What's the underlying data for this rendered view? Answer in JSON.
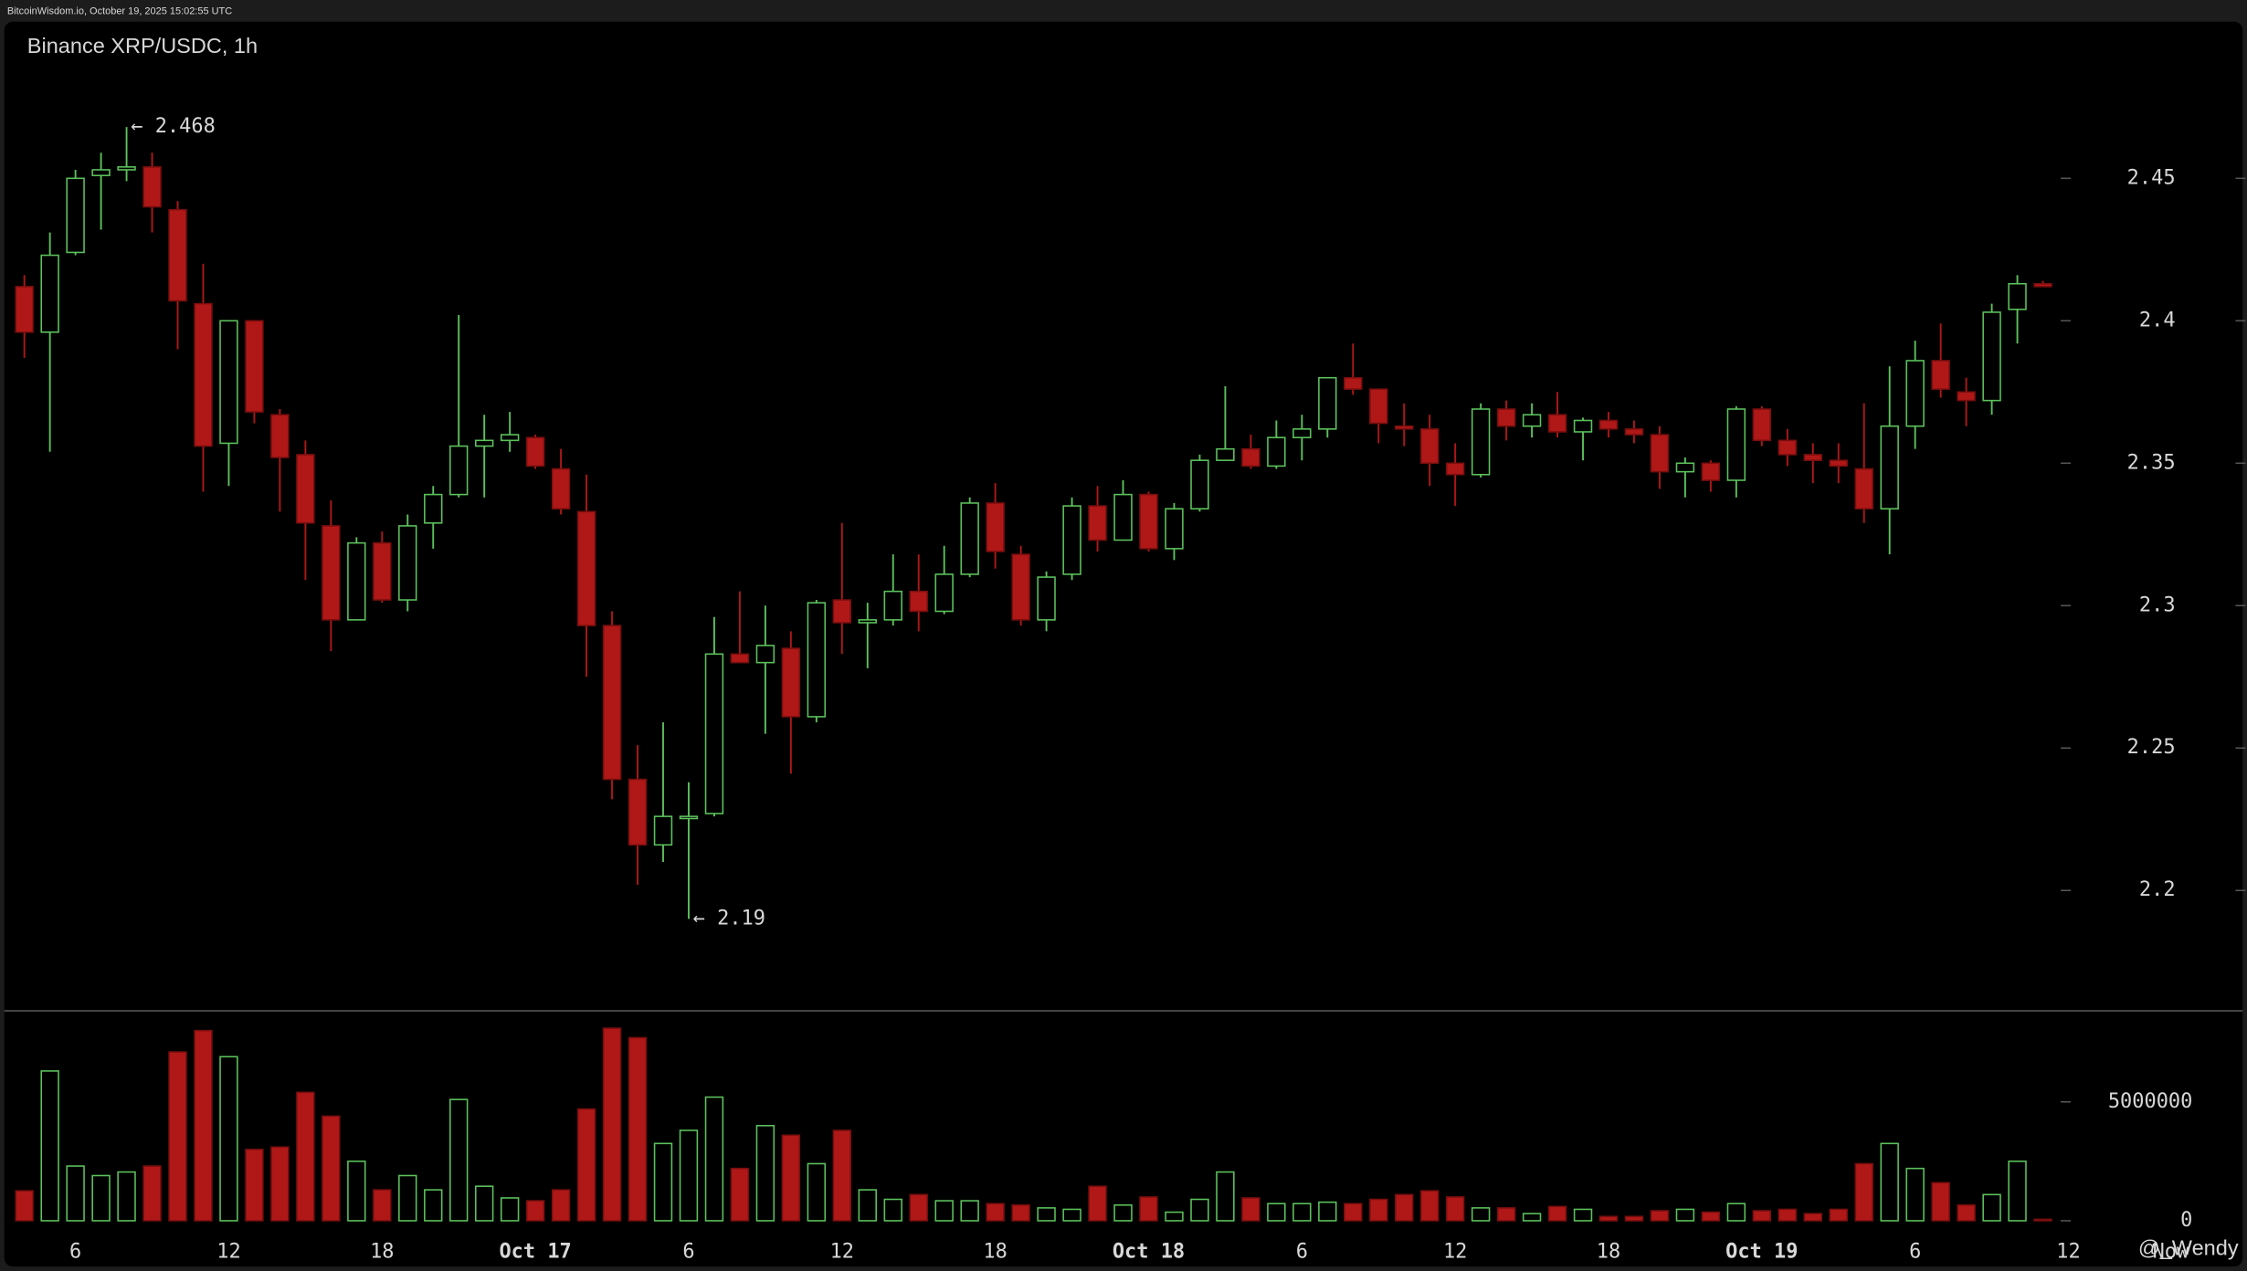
{
  "header": "BitcoinWisdom.io, October 19, 2025 15:02:55 UTC",
  "watermark": "@_Wendy",
  "chart_data": [
    {
      "type": "candlestick",
      "title": "Binance XRP/USDC, 1h",
      "up_color": "#5cc25c",
      "down_color": "#b01818",
      "open": [
        2.412,
        2.396,
        2.424,
        2.451,
        2.453,
        2.454,
        2.439,
        2.406,
        2.357,
        2.4,
        2.367,
        2.353,
        2.328,
        2.295,
        2.322,
        2.302,
        2.329,
        2.339,
        2.356,
        2.358,
        2.359,
        2.348,
        2.333,
        2.293,
        2.239,
        2.216,
        2.226,
        2.227,
        2.283,
        2.28,
        2.285,
        2.261,
        2.302,
        2.294,
        2.295,
        2.305,
        2.298,
        2.311,
        2.336,
        2.318,
        2.295,
        2.311,
        2.335,
        2.323,
        2.339,
        2.32,
        2.334,
        2.351,
        2.355,
        2.349,
        2.359,
        2.362,
        2.38,
        2.376,
        2.363,
        2.362,
        2.35,
        2.346,
        2.369,
        2.363,
        2.367,
        2.361,
        2.365,
        2.362,
        2.36,
        2.347,
        2.35,
        2.344,
        2.369,
        2.358,
        2.353,
        2.351,
        2.348,
        2.334,
        2.363,
        2.386,
        2.375,
        2.372,
        2.404,
        2.413
      ],
      "high": [
        2.416,
        2.431,
        2.453,
        2.459,
        2.468,
        2.459,
        2.442,
        2.42,
        2.4,
        2.4,
        2.369,
        2.358,
        2.337,
        2.324,
        2.326,
        2.332,
        2.342,
        2.402,
        2.367,
        2.368,
        2.36,
        2.355,
        2.346,
        2.298,
        2.251,
        2.259,
        2.238,
        2.296,
        2.305,
        2.3,
        2.291,
        2.302,
        2.329,
        2.301,
        2.318,
        2.318,
        2.321,
        2.338,
        2.343,
        2.321,
        2.312,
        2.338,
        2.342,
        2.344,
        2.34,
        2.336,
        2.353,
        2.377,
        2.36,
        2.365,
        2.367,
        2.38,
        2.392,
        2.376,
        2.371,
        2.367,
        2.357,
        2.371,
        2.372,
        2.371,
        2.375,
        2.366,
        2.368,
        2.365,
        2.363,
        2.352,
        2.351,
        2.37,
        2.37,
        2.362,
        2.357,
        2.357,
        2.371,
        2.384,
        2.393,
        2.399,
        2.38,
        2.406,
        2.416,
        2.414
      ],
      "low": [
        2.387,
        2.354,
        2.423,
        2.432,
        2.449,
        2.431,
        2.39,
        2.34,
        2.342,
        2.364,
        2.333,
        2.309,
        2.284,
        2.295,
        2.301,
        2.298,
        2.32,
        2.338,
        2.338,
        2.354,
        2.348,
        2.332,
        2.275,
        2.232,
        2.202,
        2.21,
        2.19,
        2.226,
        2.28,
        2.255,
        2.241,
        2.259,
        2.283,
        2.278,
        2.293,
        2.291,
        2.297,
        2.31,
        2.313,
        2.293,
        2.291,
        2.309,
        2.319,
        2.323,
        2.319,
        2.316,
        2.333,
        2.351,
        2.348,
        2.348,
        2.351,
        2.359,
        2.374,
        2.357,
        2.356,
        2.342,
        2.335,
        2.345,
        2.358,
        2.359,
        2.359,
        2.351,
        2.359,
        2.357,
        2.341,
        2.338,
        2.34,
        2.338,
        2.356,
        2.349,
        2.343,
        2.343,
        2.329,
        2.318,
        2.355,
        2.373,
        2.363,
        2.367,
        2.392,
        2.412
      ],
      "close": [
        2.396,
        2.423,
        2.45,
        2.453,
        2.454,
        2.44,
        2.407,
        2.356,
        2.4,
        2.368,
        2.352,
        2.329,
        2.295,
        2.322,
        2.302,
        2.328,
        2.339,
        2.356,
        2.358,
        2.36,
        2.349,
        2.334,
        2.293,
        2.239,
        2.216,
        2.226,
        2.226,
        2.283,
        2.28,
        2.286,
        2.261,
        2.301,
        2.294,
        2.295,
        2.305,
        2.298,
        2.311,
        2.336,
        2.319,
        2.295,
        2.31,
        2.335,
        2.323,
        2.339,
        2.32,
        2.334,
        2.351,
        2.355,
        2.349,
        2.359,
        2.362,
        2.38,
        2.376,
        2.364,
        2.362,
        2.35,
        2.346,
        2.369,
        2.363,
        2.367,
        2.361,
        2.365,
        2.362,
        2.36,
        2.347,
        2.35,
        2.344,
        2.369,
        2.358,
        2.353,
        2.351,
        2.349,
        2.334,
        2.363,
        2.386,
        2.376,
        2.372,
        2.403,
        2.413,
        2.412
      ],
      "ylim": [
        2.158,
        2.505
      ],
      "yticks": [
        2.2,
        2.25,
        2.3,
        2.35,
        2.4,
        2.45
      ],
      "xticks": [
        {
          "value": 2,
          "label": "6"
        },
        {
          "value": 8,
          "label": "12"
        },
        {
          "value": 14,
          "label": "18"
        },
        {
          "value": 20,
          "label": "Oct 17"
        },
        {
          "value": 26,
          "label": "6"
        },
        {
          "value": 32,
          "label": "12"
        },
        {
          "value": 38,
          "label": "18"
        },
        {
          "value": 44,
          "label": "Oct 18"
        },
        {
          "value": 50,
          "label": "6"
        },
        {
          "value": 56,
          "label": "12"
        },
        {
          "value": 62,
          "label": "18"
        },
        {
          "value": 68,
          "label": "Oct 19"
        },
        {
          "value": 74,
          "label": "6"
        },
        {
          "value": 80,
          "label": "12"
        },
        {
          "value": 84,
          "label": "Now"
        }
      ],
      "annotations": [
        "← 2.468",
        "← 2.19"
      ]
    },
    {
      "type": "bar",
      "values": [
        1260000,
        6300000,
        2300000,
        1900000,
        2050000,
        2300000,
        7100000,
        8000000,
        6900000,
        3000000,
        3100000,
        5400000,
        4400000,
        2500000,
        1300000,
        1900000,
        1300000,
        5100000,
        1450000,
        960000,
        840000,
        1300000,
        4700000,
        8100000,
        7700000,
        3250000,
        3800000,
        5200000,
        2200000,
        4000000,
        3600000,
        2400000,
        3800000,
        1300000,
        900000,
        1100000,
        840000,
        840000,
        720000,
        660000,
        540000,
        480000,
        1450000,
        660000,
        1000000,
        360000,
        900000,
        2050000,
        960000,
        720000,
        720000,
        780000,
        720000,
        900000,
        1100000,
        1260000,
        1000000,
        540000,
        540000,
        300000,
        600000,
        480000,
        180000,
        180000,
        420000,
        480000,
        360000,
        720000,
        420000,
        480000,
        300000,
        480000,
        2400000,
        3250000,
        2200000,
        1600000,
        660000,
        1100000,
        2500000,
        60000
      ],
      "ylim": [
        -600000,
        8800000
      ],
      "yticks": [
        0,
        5000000
      ]
    }
  ]
}
